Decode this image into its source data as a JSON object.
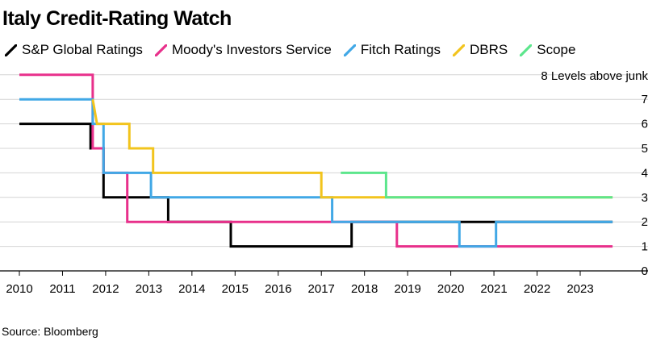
{
  "chart_data": {
    "type": "line",
    "title": "Italy Credit-Rating Watch",
    "source": "Source: Bloomberg",
    "ylabel_top": "8 Levels above junk",
    "ylim": [
      0,
      8
    ],
    "y_ticks": [
      0,
      1,
      2,
      3,
      4,
      5,
      6,
      7
    ],
    "xlim": [
      2009.85,
      2024.0
    ],
    "x_ticks": [
      "2010",
      "2011",
      "2012",
      "2013",
      "2014",
      "2015",
      "2016",
      "2017",
      "2018",
      "2019",
      "2020",
      "2021",
      "2022",
      "2023"
    ],
    "grid": true,
    "series": [
      {
        "name": "S&P Global Ratings",
        "color": "#000000",
        "points": [
          [
            2010.0,
            6
          ],
          [
            2011.65,
            6
          ],
          [
            2011.65,
            5
          ],
          [
            2011.95,
            5
          ],
          [
            2011.95,
            3
          ],
          [
            2013.45,
            3
          ],
          [
            2013.45,
            2
          ],
          [
            2014.9,
            2
          ],
          [
            2014.9,
            1
          ],
          [
            2017.7,
            1
          ],
          [
            2017.7,
            2
          ],
          [
            2023.75,
            2
          ]
        ]
      },
      {
        "name": "Moody's Investors Service",
        "color": "#e8308b",
        "points": [
          [
            2010.0,
            8
          ],
          [
            2011.7,
            8
          ],
          [
            2011.7,
            5
          ],
          [
            2011.95,
            5
          ],
          [
            2011.95,
            4
          ],
          [
            2012.5,
            4
          ],
          [
            2012.5,
            2
          ],
          [
            2018.75,
            2
          ],
          [
            2018.75,
            1
          ],
          [
            2023.75,
            1
          ]
        ]
      },
      {
        "name": "Fitch Ratings",
        "color": "#41a8e6",
        "points": [
          [
            2010.0,
            7
          ],
          [
            2011.7,
            7
          ],
          [
            2011.7,
            6
          ],
          [
            2011.95,
            6
          ],
          [
            2011.95,
            4
          ],
          [
            2013.05,
            4
          ],
          [
            2013.05,
            3
          ],
          [
            2017.25,
            3
          ],
          [
            2017.25,
            2
          ],
          [
            2020.2,
            2
          ],
          [
            2020.2,
            1
          ],
          [
            2021.05,
            1
          ],
          [
            2021.05,
            2
          ],
          [
            2023.75,
            2
          ]
        ]
      },
      {
        "name": "DBRS",
        "color": "#f2c41d",
        "points": [
          [
            2011.7,
            7
          ],
          [
            2011.8,
            6
          ],
          [
            2012.55,
            6
          ],
          [
            2012.55,
            5
          ],
          [
            2013.1,
            5
          ],
          [
            2013.1,
            4
          ],
          [
            2017.0,
            4
          ],
          [
            2017.0,
            3
          ],
          [
            2023.75,
            3
          ]
        ]
      },
      {
        "name": "Scope",
        "color": "#5ce68c",
        "points": [
          [
            2017.45,
            4
          ],
          [
            2018.5,
            4
          ],
          [
            2018.5,
            3
          ],
          [
            2023.75,
            3
          ]
        ]
      }
    ]
  }
}
